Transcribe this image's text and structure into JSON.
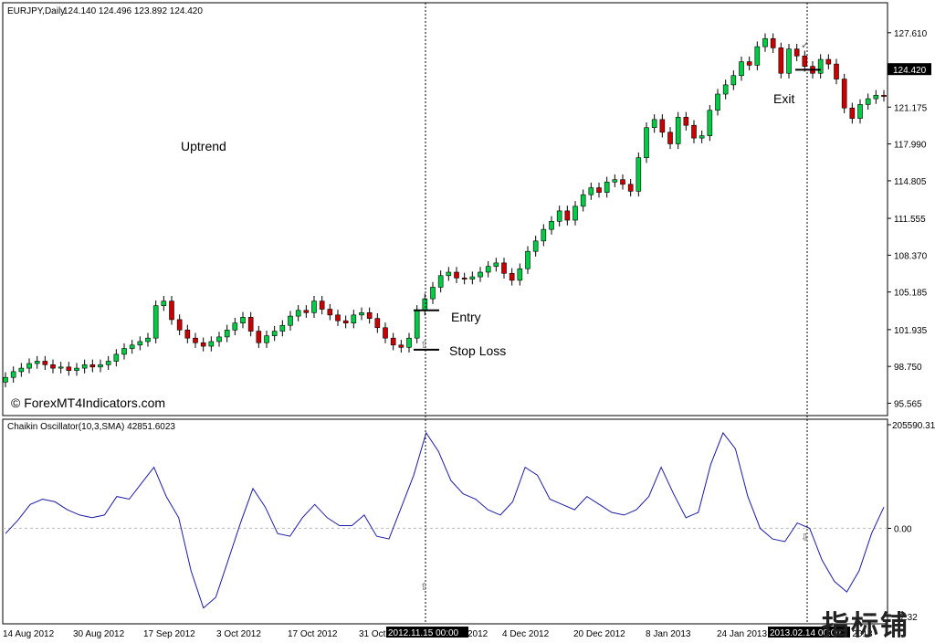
{
  "chart_data": [
    {
      "type": "candlestick",
      "symbol_header": "EURJPY,Daily",
      "ohlc_header": "124.140 124.496 123.892 124.420",
      "current_price_label": "124.420",
      "watermark": "© ForexMT4Indicators.com",
      "ylim": [
        94.5,
        130.2
      ],
      "y_ticks": [
        "127.610",
        "124.420",
        "121.175",
        "117.990",
        "114.805",
        "111.555",
        "108.370",
        "105.185",
        "101.935",
        "98.750",
        "95.565"
      ],
      "annotations": {
        "uptrend": "Uptrend",
        "entry": "Entry",
        "stop_loss": "Stop Loss",
        "exit": "Exit"
      },
      "levels": {
        "entry": 103.6,
        "stop_loss": 100.2,
        "exit": 124.4
      },
      "closes": [
        97.8,
        98.3,
        98.6,
        99.0,
        99.2,
        98.9,
        98.6,
        98.7,
        98.4,
        98.6,
        98.9,
        98.7,
        98.9,
        99.2,
        99.8,
        100.3,
        100.6,
        100.9,
        101.2,
        104.0,
        104.4,
        102.8,
        101.9,
        101.2,
        100.8,
        100.5,
        100.9,
        101.3,
        101.9,
        102.5,
        103.0,
        101.8,
        100.8,
        101.4,
        101.8,
        102.3,
        103.1,
        103.6,
        103.4,
        104.4,
        103.7,
        103.2,
        102.7,
        102.5,
        103.2,
        103.4,
        102.9,
        102.1,
        101.2,
        100.6,
        100.4,
        101.2,
        103.6,
        104.6,
        105.6,
        106.6,
        106.9,
        106.4,
        106.3,
        106.5,
        106.9,
        107.4,
        107.7,
        106.8,
        106.2,
        107.2,
        108.7,
        109.6,
        110.6,
        111.3,
        112.2,
        111.4,
        112.6,
        113.6,
        114.2,
        113.8,
        114.7,
        114.9,
        114.5,
        113.9,
        116.8,
        119.4,
        120.1,
        119.0,
        118.0,
        120.3,
        119.6,
        118.5,
        118.7,
        120.9,
        122.3,
        123.1,
        123.9,
        125.1,
        124.8,
        126.4,
        127.1,
        126.3,
        124.1,
        126.2,
        125.6,
        124.7,
        124.1,
        125.3,
        124.9,
        123.6,
        121.1,
        120.2,
        121.4,
        121.9,
        122.2,
        122.1
      ],
      "x_axis_labels": [
        "14 Aug 2012",
        "30 Aug 2012",
        "17 Sep 2012",
        "3 Oct 2012",
        "17 Oct 2012",
        "31 Oct 2012",
        "2012.11.15 00:00",
        "2012",
        "4 Dec 2012",
        "20 Dec 2012",
        "8 Jan 2013",
        "24 Jan 2013",
        "2013.02.14 00:00",
        "5 Feb 2013"
      ]
    },
    {
      "type": "line",
      "name": "Chaikin Oscillator",
      "header": "Chaikin Oscillator(10,3,SMA) 42851.6023",
      "ylim": [
        -180000,
        205590.31
      ],
      "y_ticks": [
        "205590.31",
        "0.00",
        "-7.32"
      ],
      "zero_label": "0.00",
      "series": [
        {
          "values": [
            -10000,
            15000,
            45000,
            55000,
            50000,
            35000,
            25000,
            20000,
            25000,
            60000,
            55000,
            85000,
            115000,
            60000,
            20000,
            -80000,
            -150000,
            -130000,
            -60000,
            10000,
            75000,
            40000,
            -10000,
            -15000,
            20000,
            45000,
            20000,
            5000,
            5000,
            25000,
            -15000,
            -20000,
            40000,
            100000,
            180000,
            145000,
            90000,
            65000,
            55000,
            35000,
            25000,
            50000,
            115000,
            100000,
            55000,
            45000,
            35000,
            60000,
            45000,
            30000,
            25000,
            35000,
            60000,
            115000,
            65000,
            20000,
            30000,
            120000,
            180000,
            150000,
            60000,
            0,
            -20000,
            -25000,
            10000,
            0,
            -60000,
            -100000,
            -120000,
            -80000,
            -10000,
            40000
          ]
        }
      ]
    }
  ]
}
